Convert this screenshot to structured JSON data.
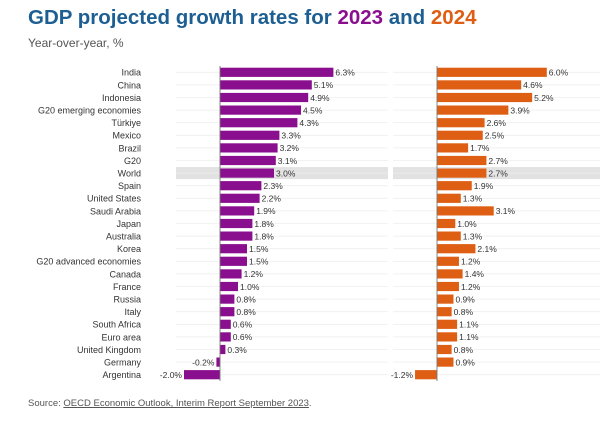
{
  "title": {
    "prefix": "GDP projected growth rates for ",
    "year1": "2023",
    "joiner": " and ",
    "year2": "2024"
  },
  "subtitle": "Year-over-year, %",
  "source": {
    "prefix": "Source: ",
    "link_text": "OECD Economic Outlook, Interim Report September 2023",
    "suffix": "."
  },
  "colors": {
    "series_2023": "#8a0f8f",
    "series_2024": "#de5f14",
    "highlight_row": "#e2e2e2",
    "title": "#1d5f93"
  },
  "chart_data": {
    "type": "bar",
    "orientation": "horizontal",
    "grid": true,
    "highlighted_category": "World",
    "categories": [
      "India",
      "China",
      "Indonesia",
      "G20 emerging economies",
      "Türkiye",
      "Mexico",
      "Brazil",
      "G20",
      "World",
      "Spain",
      "United States",
      "Saudi Arabia",
      "Japan",
      "Australia",
      "Korea",
      "G20 advanced economies",
      "Canada",
      "France",
      "Russia",
      "Italy",
      "South Africa",
      "Euro area",
      "United Kingdom",
      "Germany",
      "Argentina"
    ],
    "series": [
      {
        "name": "2023",
        "values": [
          6.3,
          5.1,
          4.9,
          4.5,
          4.3,
          3.3,
          3.2,
          3.1,
          3.0,
          2.3,
          2.2,
          1.9,
          1.8,
          1.8,
          1.5,
          1.5,
          1.2,
          1.0,
          0.8,
          0.8,
          0.6,
          0.6,
          0.3,
          -0.2,
          -2.0
        ],
        "labels": [
          "6.3%",
          "5.1%",
          "4.9%",
          "4.5%",
          "4.3%",
          "3.3%",
          "3.2%",
          "3.1%",
          "3.0%",
          "2.3%",
          "2.2%",
          "1.9%",
          "1.8%",
          "1.8%",
          "1.5%",
          "1.5%",
          "1.2%",
          "1.0%",
          "0.8%",
          "0.8%",
          "0.6%",
          "0.6%",
          "0.3%",
          "-0.2%",
          "-2.0%"
        ]
      },
      {
        "name": "2024",
        "values": [
          6.0,
          4.6,
          5.2,
          3.9,
          2.6,
          2.5,
          1.7,
          2.7,
          2.7,
          1.9,
          1.3,
          3.1,
          1.0,
          1.3,
          2.1,
          1.2,
          1.4,
          1.2,
          0.9,
          0.8,
          1.1,
          1.1,
          0.8,
          0.9,
          -1.2
        ],
        "labels": [
          "6.0%",
          "4.6%",
          "5.2%",
          "3.9%",
          "2.6%",
          "2.5%",
          "1.7%",
          "2.7%",
          "2.7%",
          "1.9%",
          "1.3%",
          "3.1%",
          "1.0%",
          "1.3%",
          "2.1%",
          "1.2%",
          "1.4%",
          "1.2%",
          "0.9%",
          "0.8%",
          "1.1%",
          "1.1%",
          "0.8%",
          "0.9%",
          "-1.2%"
        ]
      }
    ]
  }
}
